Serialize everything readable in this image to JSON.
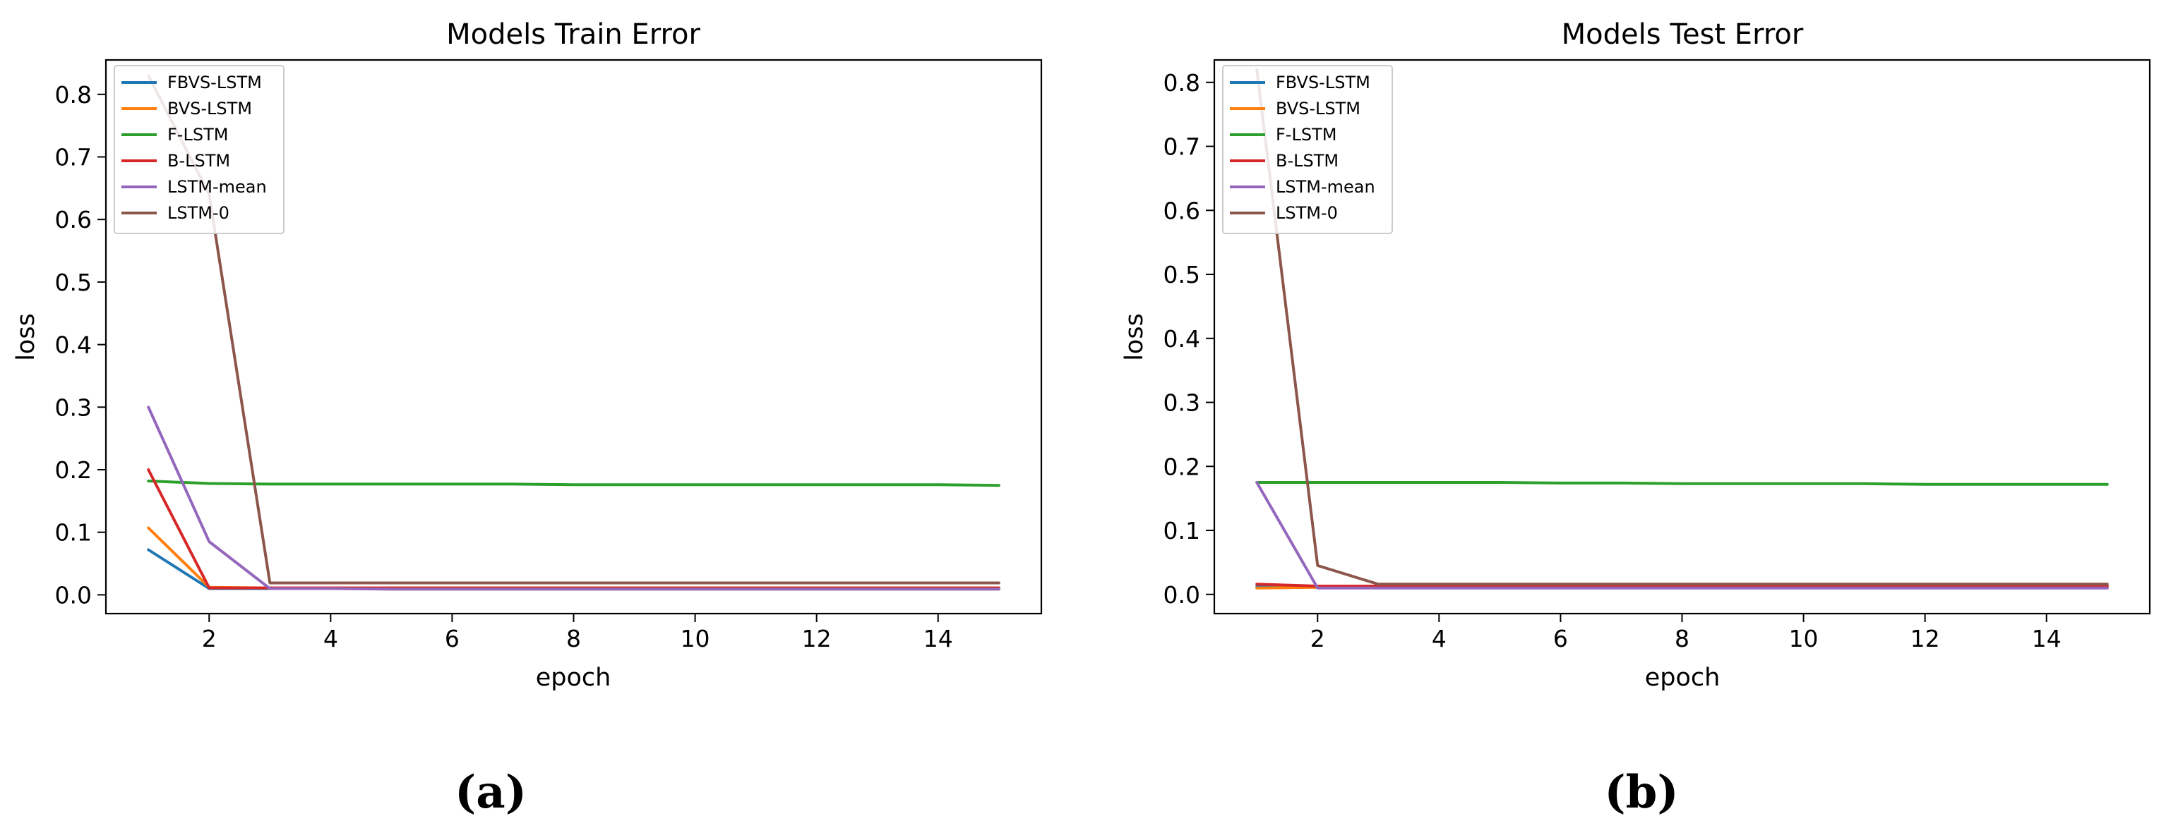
{
  "colors": {
    "FBVS-LSTM": "#1f77b4",
    "BVS-LSTM": "#ff7f0e",
    "F-LSTM": "#2ca02c",
    "B-LSTM": "#d62728",
    "LSTM-mean": "#9467bd",
    "LSTM-0": "#8c564b"
  },
  "chart_data": [
    {
      "type": "line",
      "title": "Models Train Error",
      "xlabel": "epoch",
      "ylabel": "loss",
      "panel_label": "(a)",
      "xlim": [
        0.3,
        15.7
      ],
      "ylim": [
        -0.03,
        0.855
      ],
      "xticks": [
        2,
        4,
        6,
        8,
        10,
        12,
        14
      ],
      "xtick_labels": [
        "2",
        "4",
        "6",
        "8",
        "10",
        "12",
        "14"
      ],
      "yticks": [
        0.0,
        0.1,
        0.2,
        0.3,
        0.4,
        0.5,
        0.6,
        0.7,
        0.8
      ],
      "ytick_labels": [
        "0.0",
        "0.1",
        "0.2",
        "0.3",
        "0.4",
        "0.5",
        "0.6",
        "0.7",
        "0.8"
      ],
      "legend_position": "upper-left",
      "grid": false,
      "x": [
        1,
        2,
        3,
        4,
        5,
        6,
        7,
        8,
        9,
        10,
        11,
        12,
        13,
        14,
        15
      ],
      "series": [
        {
          "name": "FBVS-LSTM",
          "values": [
            0.072,
            0.01,
            0.01,
            0.01,
            0.01,
            0.01,
            0.01,
            0.01,
            0.01,
            0.01,
            0.01,
            0.01,
            0.01,
            0.01,
            0.01
          ]
        },
        {
          "name": "BVS-LSTM",
          "values": [
            0.107,
            0.012,
            0.011,
            0.011,
            0.011,
            0.011,
            0.011,
            0.011,
            0.011,
            0.011,
            0.011,
            0.011,
            0.011,
            0.011,
            0.011
          ]
        },
        {
          "name": "F-LSTM",
          "values": [
            0.182,
            0.178,
            0.177,
            0.177,
            0.177,
            0.177,
            0.177,
            0.176,
            0.176,
            0.176,
            0.176,
            0.176,
            0.176,
            0.176,
            0.175
          ]
        },
        {
          "name": "B-LSTM",
          "values": [
            0.2,
            0.011,
            0.011,
            0.011,
            0.011,
            0.011,
            0.011,
            0.011,
            0.011,
            0.011,
            0.011,
            0.011,
            0.011,
            0.011,
            0.011
          ]
        },
        {
          "name": "LSTM-mean",
          "values": [
            0.3,
            0.085,
            0.01,
            0.01,
            0.009,
            0.009,
            0.009,
            0.009,
            0.009,
            0.009,
            0.009,
            0.009,
            0.009,
            0.009,
            0.009
          ]
        },
        {
          "name": "LSTM-0",
          "values": [
            0.83,
            0.64,
            0.019,
            0.019,
            0.019,
            0.019,
            0.019,
            0.019,
            0.019,
            0.019,
            0.019,
            0.019,
            0.019,
            0.019,
            0.019
          ]
        }
      ]
    },
    {
      "type": "line",
      "title": "Models Test Error",
      "xlabel": "epoch",
      "ylabel": "loss",
      "panel_label": "(b)",
      "xlim": [
        0.3,
        15.7
      ],
      "ylim": [
        -0.03,
        0.835
      ],
      "xticks": [
        2,
        4,
        6,
        8,
        10,
        12,
        14
      ],
      "xtick_labels": [
        "2",
        "4",
        "6",
        "8",
        "10",
        "12",
        "14"
      ],
      "yticks": [
        0.0,
        0.1,
        0.2,
        0.3,
        0.4,
        0.5,
        0.6,
        0.7,
        0.8
      ],
      "ytick_labels": [
        "0.0",
        "0.1",
        "0.2",
        "0.3",
        "0.4",
        "0.5",
        "0.6",
        "0.7",
        "0.8"
      ],
      "legend_position": "upper-left",
      "grid": false,
      "x": [
        1,
        2,
        3,
        4,
        5,
        6,
        7,
        8,
        9,
        10,
        11,
        12,
        13,
        14,
        15
      ],
      "series": [
        {
          "name": "FBVS-LSTM",
          "values": [
            0.012,
            0.011,
            0.011,
            0.011,
            0.011,
            0.011,
            0.011,
            0.011,
            0.011,
            0.011,
            0.011,
            0.011,
            0.011,
            0.011,
            0.011
          ]
        },
        {
          "name": "BVS-LSTM",
          "values": [
            0.01,
            0.011,
            0.011,
            0.011,
            0.011,
            0.011,
            0.011,
            0.011,
            0.011,
            0.011,
            0.011,
            0.011,
            0.011,
            0.011,
            0.011
          ]
        },
        {
          "name": "F-LSTM",
          "values": [
            0.175,
            0.175,
            0.175,
            0.175,
            0.175,
            0.174,
            0.174,
            0.173,
            0.173,
            0.173,
            0.173,
            0.172,
            0.172,
            0.172,
            0.172
          ]
        },
        {
          "name": "B-LSTM",
          "values": [
            0.016,
            0.013,
            0.013,
            0.013,
            0.013,
            0.013,
            0.013,
            0.013,
            0.013,
            0.013,
            0.013,
            0.013,
            0.013,
            0.013,
            0.013
          ]
        },
        {
          "name": "LSTM-mean",
          "values": [
            0.175,
            0.01,
            0.01,
            0.01,
            0.01,
            0.01,
            0.01,
            0.01,
            0.01,
            0.01,
            0.01,
            0.01,
            0.01,
            0.01,
            0.01
          ]
        },
        {
          "name": "LSTM-0",
          "values": [
            0.82,
            0.045,
            0.016,
            0.016,
            0.016,
            0.016,
            0.016,
            0.016,
            0.016,
            0.016,
            0.016,
            0.016,
            0.016,
            0.016,
            0.016
          ]
        }
      ]
    }
  ]
}
